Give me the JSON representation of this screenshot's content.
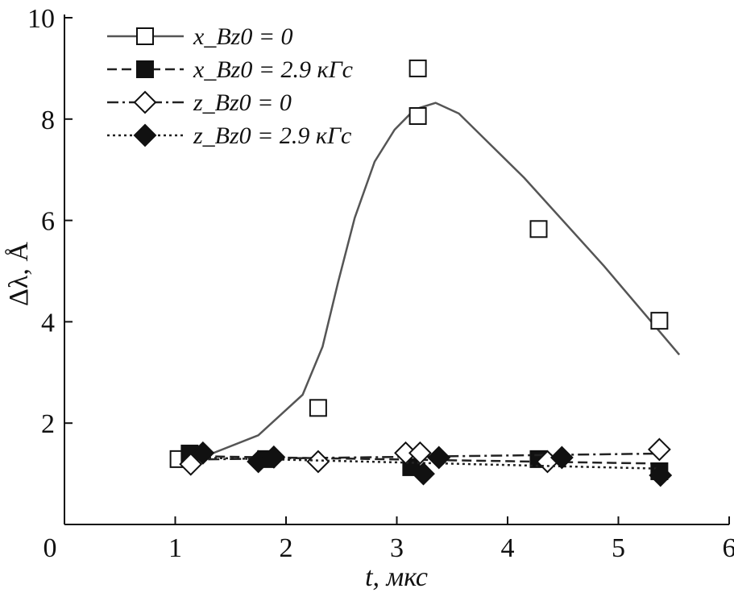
{
  "chart_data": {
    "type": "line",
    "xlabel": "t, мкс",
    "ylabel": "Δλ, Å",
    "xlim": [
      0,
      6
    ],
    "xticks": [
      0,
      1,
      2,
      3,
      4,
      5,
      6
    ],
    "ylim": [
      0,
      10
    ],
    "yticks": [
      2,
      4,
      6,
      8,
      10
    ],
    "legend": "upper-left",
    "series": [
      {
        "name": "x_Bz0 = 0",
        "color": "#111111",
        "marker": "square-open",
        "dash": "solid",
        "line_color": "#555555",
        "x": [
          1.03,
          2.29,
          3.19,
          3.19,
          4.28,
          5.37
        ],
        "values": [
          1.29,
          2.3,
          8.06,
          9.0,
          5.83,
          4.02
        ],
        "line": {
          "x": [
            1.24,
            1.75,
            2.15,
            2.33,
            2.47,
            2.62,
            2.8,
            2.98,
            3.16,
            3.35,
            3.56,
            4.15,
            4.87,
            5.55
          ],
          "values": [
            1.32,
            1.76,
            2.56,
            3.51,
            4.78,
            6.05,
            7.16,
            7.79,
            8.19,
            8.32,
            8.11,
            6.84,
            5.1,
            3.35
          ]
        }
      },
      {
        "name": "x_Bz0 = 2.9 кГс",
        "color": "#111111",
        "marker": "square-filled",
        "dash": "dashed",
        "line_color": "#222222",
        "x": [
          1.13,
          1.82,
          3.13,
          4.28,
          5.37
        ],
        "values": [
          1.4,
          1.29,
          1.13,
          1.29,
          1.05
        ],
        "line": {
          "x": [
            1.1,
            5.4
          ],
          "values": [
            1.35,
            1.2
          ]
        }
      },
      {
        "name": "z_Bz0 = 0",
        "color": "#111111",
        "marker": "diamond-open",
        "dash": "dashdot",
        "line_color": "#222222",
        "x": [
          1.14,
          2.29,
          3.08,
          3.21,
          4.36,
          5.37
        ],
        "values": [
          1.19,
          1.24,
          1.41,
          1.41,
          1.24,
          1.48
        ],
        "line": {
          "x": [
            1.1,
            5.4
          ],
          "values": [
            1.28,
            1.4
          ]
        }
      },
      {
        "name": "z_Bz0 = 2.9 кГс",
        "color": "#111111",
        "marker": "diamond-filled",
        "dash": "dotted",
        "line_color": "#222222",
        "x": [
          1.25,
          1.75,
          1.89,
          3.24,
          3.38,
          4.49,
          5.38
        ],
        "values": [
          1.41,
          1.24,
          1.33,
          1.0,
          1.32,
          1.32,
          0.97
        ],
        "line": {
          "x": [
            1.2,
            5.4
          ],
          "values": [
            1.32,
            1.1
          ]
        }
      }
    ]
  }
}
